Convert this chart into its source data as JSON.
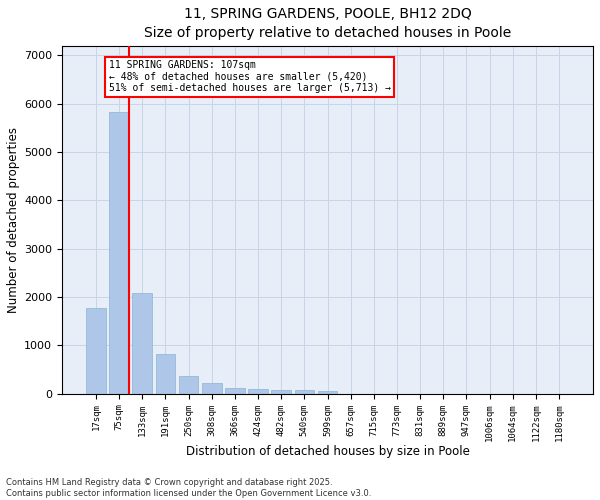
{
  "title_line1": "11, SPRING GARDENS, POOLE, BH12 2DQ",
  "title_line2": "Size of property relative to detached houses in Poole",
  "xlabel": "Distribution of detached houses by size in Poole",
  "ylabel": "Number of detached properties",
  "categories": [
    "17sqm",
    "75sqm",
    "133sqm",
    "191sqm",
    "250sqm",
    "308sqm",
    "366sqm",
    "424sqm",
    "482sqm",
    "540sqm",
    "599sqm",
    "657sqm",
    "715sqm",
    "773sqm",
    "831sqm",
    "889sqm",
    "947sqm",
    "1006sqm",
    "1064sqm",
    "1122sqm",
    "1180sqm"
  ],
  "values": [
    1780,
    5820,
    2090,
    820,
    360,
    210,
    120,
    85,
    80,
    65,
    50,
    0,
    0,
    0,
    0,
    0,
    0,
    0,
    0,
    0,
    0
  ],
  "bar_color": "#aec6e8",
  "bar_edge_color": "#8ab4d8",
  "grid_color": "#c8d4e8",
  "background_color": "#e8eef8",
  "vline_color": "red",
  "annotation_text": "11 SPRING GARDENS: 107sqm\n← 48% of detached houses are smaller (5,420)\n51% of semi-detached houses are larger (5,713) →",
  "annotation_box_color": "white",
  "annotation_box_edge": "red",
  "ylim": [
    0,
    7200
  ],
  "yticks": [
    0,
    1000,
    2000,
    3000,
    4000,
    5000,
    6000,
    7000
  ],
  "footer_line1": "Contains HM Land Registry data © Crown copyright and database right 2025.",
  "footer_line2": "Contains public sector information licensed under the Open Government Licence v3.0."
}
